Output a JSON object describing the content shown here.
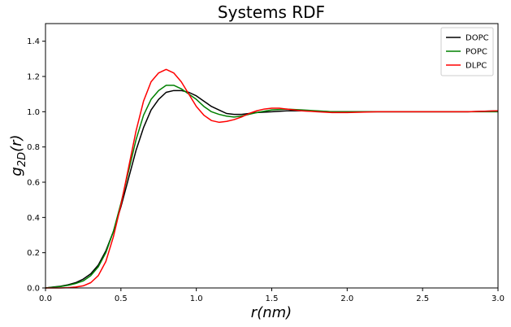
{
  "chart_data": {
    "type": "line",
    "title": "Systems RDF",
    "xlabel": "r(nm)",
    "ylabel": "g_2D(r)",
    "xlim": [
      0,
      3.0
    ],
    "ylim": [
      0,
      1.5
    ],
    "x_ticks": [
      0,
      0.5,
      1.0,
      1.5,
      2.0,
      2.5,
      3.0
    ],
    "x_tick_labels": [
      "0.0",
      "0.5",
      "1.0",
      "1.5",
      "2.0",
      "2.5",
      "3.0"
    ],
    "y_ticks": [
      0,
      0.2,
      0.4,
      0.6,
      0.8,
      1.0,
      1.2,
      1.4
    ],
    "y_tick_labels": [
      "0.0",
      "0.2",
      "0.4",
      "0.6",
      "0.8",
      "1.0",
      "1.2",
      "1.4"
    ],
    "grid": false,
    "legend_position": "top-right",
    "series": [
      {
        "name": "DOPC",
        "color": "#000000",
        "points": [
          [
            0.0,
            0.0
          ],
          [
            0.05,
            0.005
          ],
          [
            0.1,
            0.01
          ],
          [
            0.15,
            0.018
          ],
          [
            0.2,
            0.03
          ],
          [
            0.25,
            0.05
          ],
          [
            0.3,
            0.08
          ],
          [
            0.35,
            0.13
          ],
          [
            0.4,
            0.21
          ],
          [
            0.45,
            0.32
          ],
          [
            0.5,
            0.46
          ],
          [
            0.55,
            0.62
          ],
          [
            0.6,
            0.78
          ],
          [
            0.65,
            0.91
          ],
          [
            0.7,
            1.01
          ],
          [
            0.75,
            1.07
          ],
          [
            0.8,
            1.11
          ],
          [
            0.85,
            1.12
          ],
          [
            0.9,
            1.12
          ],
          [
            0.95,
            1.11
          ],
          [
            1.0,
            1.09
          ],
          [
            1.05,
            1.06
          ],
          [
            1.1,
            1.03
          ],
          [
            1.15,
            1.01
          ],
          [
            1.2,
            0.99
          ],
          [
            1.25,
            0.985
          ],
          [
            1.3,
            0.985
          ],
          [
            1.35,
            0.99
          ],
          [
            1.4,
            0.995
          ],
          [
            1.5,
            1.0
          ],
          [
            1.6,
            1.005
          ],
          [
            1.7,
            1.005
          ],
          [
            1.8,
            1.003
          ],
          [
            1.9,
            1.0
          ],
          [
            2.0,
            1.0
          ],
          [
            2.2,
            1.0
          ],
          [
            2.4,
            1.0
          ],
          [
            2.6,
            1.0
          ],
          [
            2.8,
            1.0
          ],
          [
            3.0,
            1.005
          ]
        ]
      },
      {
        "name": "POPC",
        "color": "#008000",
        "points": [
          [
            0.0,
            0.0
          ],
          [
            0.05,
            0.004
          ],
          [
            0.1,
            0.008
          ],
          [
            0.15,
            0.015
          ],
          [
            0.2,
            0.025
          ],
          [
            0.25,
            0.04
          ],
          [
            0.3,
            0.07
          ],
          [
            0.35,
            0.12
          ],
          [
            0.4,
            0.2
          ],
          [
            0.45,
            0.32
          ],
          [
            0.5,
            0.48
          ],
          [
            0.55,
            0.66
          ],
          [
            0.6,
            0.84
          ],
          [
            0.65,
            0.98
          ],
          [
            0.7,
            1.07
          ],
          [
            0.75,
            1.12
          ],
          [
            0.8,
            1.15
          ],
          [
            0.85,
            1.15
          ],
          [
            0.9,
            1.13
          ],
          [
            0.95,
            1.1
          ],
          [
            1.0,
            1.07
          ],
          [
            1.05,
            1.03
          ],
          [
            1.1,
            1.0
          ],
          [
            1.15,
            0.985
          ],
          [
            1.2,
            0.975
          ],
          [
            1.25,
            0.97
          ],
          [
            1.3,
            0.975
          ],
          [
            1.35,
            0.985
          ],
          [
            1.4,
            0.995
          ],
          [
            1.5,
            1.01
          ],
          [
            1.6,
            1.015
          ],
          [
            1.7,
            1.01
          ],
          [
            1.8,
            1.005
          ],
          [
            1.9,
            1.0
          ],
          [
            2.0,
            1.0
          ],
          [
            2.2,
            1.0
          ],
          [
            2.4,
            1.0
          ],
          [
            2.6,
            1.0
          ],
          [
            2.8,
            1.0
          ],
          [
            3.0,
            1.0
          ]
        ]
      },
      {
        "name": "DLPC",
        "color": "#ff0000",
        "points": [
          [
            0.0,
            0.0
          ],
          [
            0.05,
            0.0
          ],
          [
            0.1,
            0.0
          ],
          [
            0.15,
            0.002
          ],
          [
            0.2,
            0.005
          ],
          [
            0.25,
            0.012
          ],
          [
            0.3,
            0.03
          ],
          [
            0.35,
            0.07
          ],
          [
            0.4,
            0.15
          ],
          [
            0.45,
            0.29
          ],
          [
            0.5,
            0.47
          ],
          [
            0.55,
            0.68
          ],
          [
            0.6,
            0.89
          ],
          [
            0.65,
            1.06
          ],
          [
            0.7,
            1.17
          ],
          [
            0.75,
            1.22
          ],
          [
            0.8,
            1.24
          ],
          [
            0.85,
            1.22
          ],
          [
            0.9,
            1.17
          ],
          [
            0.95,
            1.1
          ],
          [
            1.0,
            1.03
          ],
          [
            1.05,
            0.98
          ],
          [
            1.1,
            0.95
          ],
          [
            1.15,
            0.94
          ],
          [
            1.2,
            0.945
          ],
          [
            1.25,
            0.955
          ],
          [
            1.3,
            0.97
          ],
          [
            1.35,
            0.99
          ],
          [
            1.4,
            1.005
          ],
          [
            1.45,
            1.015
          ],
          [
            1.5,
            1.02
          ],
          [
            1.55,
            1.02
          ],
          [
            1.6,
            1.015
          ],
          [
            1.7,
            1.005
          ],
          [
            1.8,
            1.0
          ],
          [
            1.9,
            0.995
          ],
          [
            2.0,
            0.995
          ],
          [
            2.2,
            1.0
          ],
          [
            2.4,
            1.0
          ],
          [
            2.6,
            1.0
          ],
          [
            2.8,
            1.0
          ],
          [
            3.0,
            1.005
          ]
        ]
      }
    ]
  }
}
